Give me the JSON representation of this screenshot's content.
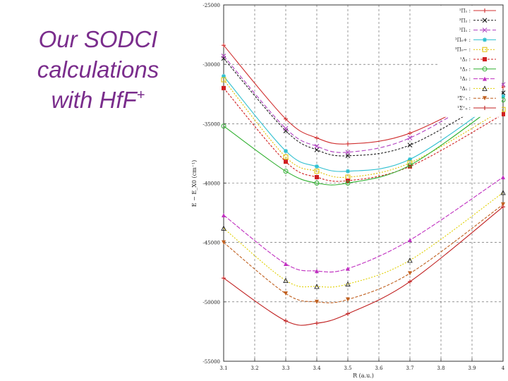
{
  "slide": {
    "title_line1": "Our SODCI",
    "title_line2": "calculations",
    "title_line3_prefix": "with HfF",
    "title_line3_sup": "+"
  },
  "chart_data": {
    "type": "line",
    "xlabel": "R (a.u.)",
    "ylabel": "E − E_X0 (cm⁻¹)",
    "xlim": [
      3.1,
      4.0
    ],
    "ylim": [
      -55000,
      -25000
    ],
    "x_ticks": [
      "3.1",
      "3.2",
      "3.3",
      "3.4",
      "3.5",
      "3.6",
      "3.7",
      "3.8",
      "3.9",
      "4"
    ],
    "y_ticks": [
      "-25000",
      "-30000",
      "-35000",
      "-40000",
      "-45000",
      "-50000",
      "-55000"
    ],
    "grid": true,
    "legend_position": "top-right",
    "x": [
      3.1,
      3.3,
      3.4,
      3.5,
      3.7,
      4.0
    ],
    "series": [
      {
        "name": "¹Π₁",
        "color": "#d03030",
        "marker": "+",
        "dash": "solid",
        "values": [
          -28400,
          -34600,
          -36200,
          -36700,
          -35800,
          -31900
        ]
      },
      {
        "name": "³Π₂",
        "color": "#202020",
        "marker": "x",
        "dash": "3,2",
        "values": [
          -29500,
          -35600,
          -37200,
          -37700,
          -36800,
          -32400
        ]
      },
      {
        "name": "³Π₁",
        "color": "#b040c0",
        "marker": "x",
        "dash": "6,3",
        "values": [
          -29300,
          -35400,
          -36900,
          -37400,
          -36200,
          -31700
        ]
      },
      {
        "name": "³Π₀+",
        "color": "#30c0d0",
        "marker": "*",
        "dash": "solid",
        "values": [
          -31000,
          -37300,
          -38600,
          -39000,
          -38000,
          -32700
        ]
      },
      {
        "name": "³Π₀−",
        "color": "#e0c000",
        "marker": "□",
        "dash": "2,2",
        "values": [
          -31300,
          -37800,
          -39000,
          -39500,
          -38300,
          -33800
        ]
      },
      {
        "name": "¹Δ₂",
        "color": "#d02020",
        "marker": "■",
        "dash": "3,2",
        "values": [
          -32000,
          -38200,
          -39500,
          -39800,
          -38600,
          -34200
        ]
      },
      {
        "name": "³Δ₃",
        "color": "#30b030",
        "marker": "○",
        "dash": "solid",
        "values": [
          -35200,
          -39000,
          -40000,
          -40000,
          -38500,
          -33000
        ]
      },
      {
        "name": "³Δ₂",
        "color": "#c030c0",
        "marker": "▲",
        "dash": "6,2",
        "values": [
          -42700,
          -46800,
          -47400,
          -47200,
          -44800,
          -39500
        ]
      },
      {
        "name": "³Δ₁",
        "color": "#e0d000",
        "marker": "△",
        "dash": "2,2",
        "values": [
          -43800,
          -48200,
          -48700,
          -48500,
          -46500,
          -40800
        ]
      },
      {
        "name": "³Σ⁺₁",
        "color": "#c06020",
        "marker": "▼",
        "dash": "4,2",
        "values": [
          -45000,
          -49300,
          -50000,
          -49800,
          -47600,
          -41800
        ]
      },
      {
        "name": "¹Σ⁺₀",
        "color": "#c02020",
        "marker": "+",
        "dash": "solid",
        "values": [
          -48000,
          -51600,
          -51800,
          -51000,
          -48300,
          -42000
        ]
      }
    ]
  }
}
